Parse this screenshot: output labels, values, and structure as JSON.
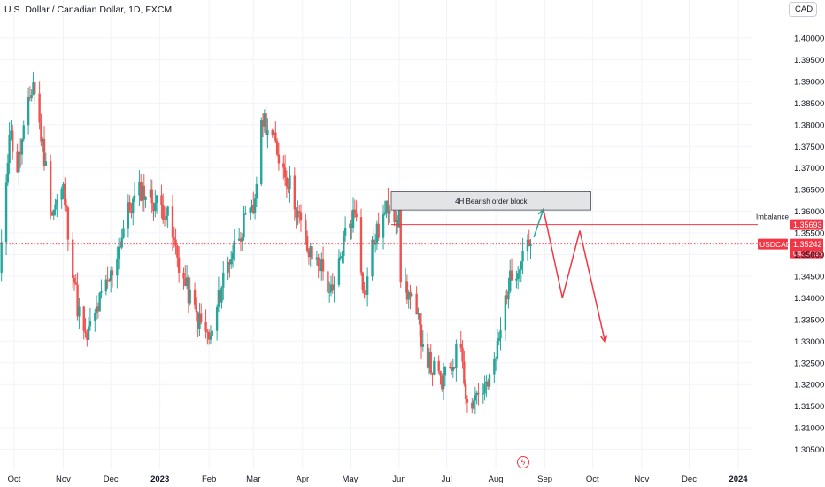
{
  "header": {
    "title": "U.S. Dollar / Canadian Dollar, 1D, FXCM",
    "currency": "CAD"
  },
  "colors": {
    "up": "#26a69a",
    "down": "#ef5350",
    "annotation_red": "#f23645",
    "arrow_green": "#26a69a",
    "block_fill": "#e3e4e6"
  },
  "icons": {
    "flash": "lightning-bolt-icon"
  },
  "chart_data": {
    "type": "candlestick",
    "y_ticks": [
      "1.30500",
      "1.31000",
      "1.31500",
      "1.32000",
      "1.32500",
      "1.33000",
      "1.33500",
      "1.34000",
      "1.34500",
      "1.35000",
      "1.35500",
      "1.36000",
      "1.36500",
      "1.37000",
      "1.37500",
      "1.38000",
      "1.38500",
      "1.39000",
      "1.39500",
      "1.40000"
    ],
    "ylim": [
      1.303,
      1.4035
    ],
    "x_ticks": [
      "Oct",
      "Nov",
      "Dec",
      "2023",
      "Feb",
      "Mar",
      "Apr",
      "May",
      "Jun",
      "Jul",
      "Aug",
      "Sep",
      "Oct",
      "Nov",
      "Dec",
      "2024"
    ],
    "x_tick_dates": [
      "2022-10-01",
      "2022-11-01",
      "2022-12-01",
      "2023-01-01",
      "2023-02-01",
      "2023-03-01",
      "2023-04-01",
      "2023-05-01",
      "2023-06-01",
      "2023-07-01",
      "2023-08-01",
      "2023-09-01",
      "2023-10-01",
      "2023-11-01",
      "2023-12-01",
      "2024-01-01"
    ],
    "bold_ticks": [
      "2023",
      "2024"
    ],
    "key_points": [
      {
        "date": "2022-09-22",
        "close": 1.345
      },
      {
        "date": "2022-09-28",
        "close": 1.379
      },
      {
        "date": "2022-10-03",
        "close": 1.37
      },
      {
        "date": "2022-10-13",
        "close": 1.39
      },
      {
        "date": "2022-10-25",
        "close": 1.36
      },
      {
        "date": "2022-11-01",
        "close": 1.365
      },
      {
        "date": "2022-11-10",
        "close": 1.338
      },
      {
        "date": "2022-11-15",
        "close": 1.33
      },
      {
        "date": "2022-11-25",
        "close": 1.34
      },
      {
        "date": "2022-12-01",
        "close": 1.345
      },
      {
        "date": "2022-12-12",
        "close": 1.36
      },
      {
        "date": "2022-12-20",
        "close": 1.365
      },
      {
        "date": "2023-01-05",
        "close": 1.36
      },
      {
        "date": "2023-01-15",
        "close": 1.345
      },
      {
        "date": "2023-01-25",
        "close": 1.335
      },
      {
        "date": "2023-02-02",
        "close": 1.33
      },
      {
        "date": "2023-02-10",
        "close": 1.345
      },
      {
        "date": "2023-02-20",
        "close": 1.355
      },
      {
        "date": "2023-03-01",
        "close": 1.36
      },
      {
        "date": "2023-03-07",
        "close": 1.382
      },
      {
        "date": "2023-03-15",
        "close": 1.375
      },
      {
        "date": "2023-03-25",
        "close": 1.365
      },
      {
        "date": "2023-04-05",
        "close": 1.35
      },
      {
        "date": "2023-04-12",
        "close": 1.348
      },
      {
        "date": "2023-04-20",
        "close": 1.34
      },
      {
        "date": "2023-04-28",
        "close": 1.355
      },
      {
        "date": "2023-05-01",
        "close": 1.358
      },
      {
        "date": "2023-05-05",
        "close": 1.36
      },
      {
        "date": "2023-05-10",
        "close": 1.34
      },
      {
        "date": "2023-05-15",
        "close": 1.352
      },
      {
        "date": "2023-05-26",
        "close": 1.362
      },
      {
        "date": "2023-06-01",
        "close": 1.358
      },
      {
        "date": "2023-06-02",
        "close": 1.345
      },
      {
        "date": "2023-06-08",
        "close": 1.34
      },
      {
        "date": "2023-06-20",
        "close": 1.325
      },
      {
        "date": "2023-06-28",
        "close": 1.32
      },
      {
        "date": "2023-07-05",
        "close": 1.325
      },
      {
        "date": "2023-07-10",
        "close": 1.33
      },
      {
        "date": "2023-07-14",
        "close": 1.315
      },
      {
        "date": "2023-07-20",
        "close": 1.318
      },
      {
        "date": "2023-07-28",
        "close": 1.32
      },
      {
        "date": "2023-08-03",
        "close": 1.33
      },
      {
        "date": "2023-08-08",
        "close": 1.342
      },
      {
        "date": "2023-08-15",
        "close": 1.348
      },
      {
        "date": "2023-08-21",
        "close": 1.354
      },
      {
        "date": "2023-08-23",
        "close": 1.3524
      }
    ],
    "order_block": {
      "label": "4H Bearish order block",
      "start": "2023-05-27",
      "end": "2023-09-30",
      "top": 1.3645,
      "bottom": 1.3603
    },
    "imbalance": {
      "label": "Imbalance",
      "price": 1.35693,
      "price_label": "1.35693",
      "start": "2023-05-27"
    },
    "current_price": {
      "symbol": "USDCAD",
      "price": 1.35242,
      "price_label": "1.35242",
      "countdown": "04:17:23"
    },
    "projection_green": [
      {
        "date": "2023-08-25",
        "price": 1.354
      },
      {
        "date": "2023-08-31",
        "price": 1.3605
      }
    ],
    "projection_red": [
      {
        "date": "2023-08-31",
        "price": 1.3605
      },
      {
        "date": "2023-09-12",
        "price": 1.34
      },
      {
        "date": "2023-09-23",
        "price": 1.3555
      },
      {
        "date": "2023-10-09",
        "price": 1.3298
      }
    ]
  }
}
